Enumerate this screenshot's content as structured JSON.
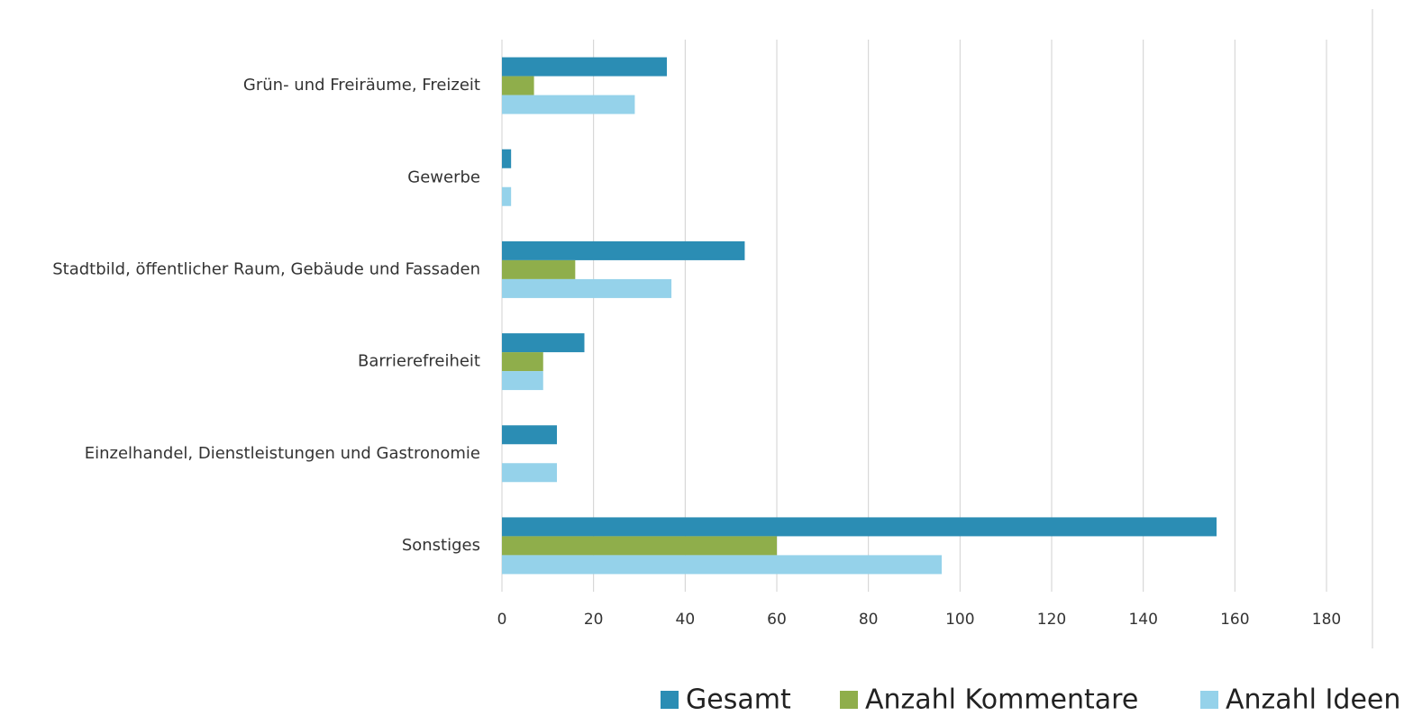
{
  "chart_data": {
    "type": "hbar",
    "categories": [
      "Grün- und Freiräume, Freizeit",
      "Gewerbe",
      "Stadtbild, öffentlicher Raum, Gebäude und Fassaden",
      "Barrierefreiheit",
      "Einzelhandel, Dienstleistungen und Gastronomie",
      "Sonstiges"
    ],
    "series": [
      {
        "name": "Gesamt",
        "color": "#2b8db4",
        "values": [
          36,
          2,
          53,
          18,
          12,
          156
        ]
      },
      {
        "name": "Anzahl Kommentare",
        "color": "#8fae4b",
        "values": [
          7,
          0,
          16,
          9,
          0,
          60
        ]
      },
      {
        "name": "Anzahl Ideen",
        "color": "#95d2ea",
        "values": [
          29,
          2,
          37,
          9,
          12,
          96
        ]
      }
    ],
    "xlim": [
      0,
      180
    ],
    "xticks": [
      0,
      20,
      40,
      60,
      80,
      100,
      120,
      140,
      160,
      180
    ],
    "grid": true,
    "legend": "bottom"
  }
}
